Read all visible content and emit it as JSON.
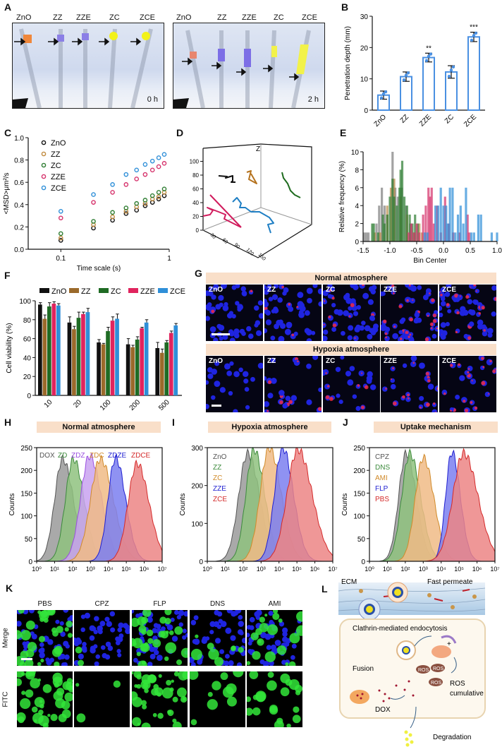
{
  "panels": {
    "A": {
      "letter": "A",
      "photo_0h": {
        "samples": [
          "ZnO",
          "ZZ",
          "ZZE",
          "ZC",
          "ZCE"
        ],
        "time": "0 h"
      },
      "photo_2h": {
        "samples": [
          "ZnO",
          "ZZ",
          "ZZE",
          "ZC",
          "ZCE"
        ],
        "time": "2 h"
      }
    },
    "B": {
      "letter": "B"
    },
    "C": {
      "letter": "C"
    },
    "D": {
      "letter": "D"
    },
    "E": {
      "letter": "E"
    },
    "F": {
      "letter": "F"
    },
    "G": {
      "letter": "G",
      "normal_title": "Normal atmosphere",
      "hypoxia_title": "Hypoxia atmosphere",
      "samples": [
        "ZnO",
        "ZZ",
        "ZC",
        "ZZE",
        "ZCE"
      ]
    },
    "H": {
      "letter": "H",
      "banner": "Normal atmosphere"
    },
    "I": {
      "letter": "I",
      "banner": "Hypoxia atmosphere"
    },
    "J": {
      "letter": "J",
      "banner": "Uptake mechanism"
    },
    "K": {
      "letter": "K",
      "columns": [
        "PBS",
        "CPZ",
        "FLP",
        "DNS",
        "AMI"
      ],
      "rows": [
        "Merge",
        "FITC"
      ]
    },
    "L": {
      "letter": "L",
      "labels": {
        "ecm": "ECM",
        "fast_permeate": "Fast permeate",
        "clathrin": "Clathrin-mediated endocytosis",
        "fusion": "Fusion",
        "dox": "DOX",
        "ros": "ROS",
        "ros_cumulative_1": "ROS",
        "ros_cumulative_2": "cumulative",
        "degradation": "Degradation",
        "plus": "+"
      }
    }
  },
  "chart_data": [
    {
      "id": "B",
      "type": "bar",
      "title": "",
      "xlabel": "",
      "ylabel": "Penetration depth (mm)",
      "categories": [
        "ZnO",
        "ZZ",
        "ZZE",
        "ZC",
        "ZCE"
      ],
      "values": [
        4.8,
        10.7,
        16.8,
        12.2,
        23.4
      ],
      "errors": [
        1.3,
        1.5,
        1.4,
        2.0,
        1.5
      ],
      "significance": [
        "",
        "",
        "**",
        "",
        "***"
      ],
      "ylim": [
        0,
        30
      ],
      "yticks": [
        0,
        10,
        20,
        30
      ],
      "color": "#4a90e2"
    },
    {
      "id": "C",
      "type": "scatter",
      "xscale": "log",
      "xlabel": "Time scale (s)",
      "ylabel": "<MSD>μm²/s",
      "ylim": [
        0.0,
        1.0
      ],
      "yticks": [
        0.0,
        0.2,
        0.4,
        0.6,
        0.8,
        1.0
      ],
      "xticks": [
        "0.1",
        "1"
      ],
      "x": [
        0.1,
        0.2,
        0.3,
        0.4,
        0.5,
        0.6,
        0.7,
        0.8,
        0.9
      ],
      "series": [
        {
          "name": "ZnO",
          "color": "#111111",
          "values": [
            0.08,
            0.19,
            0.26,
            0.32,
            0.35,
            0.39,
            0.42,
            0.45,
            0.48
          ]
        },
        {
          "name": "ZZ",
          "color": "#c08a3e",
          "values": [
            0.1,
            0.22,
            0.29,
            0.34,
            0.38,
            0.41,
            0.45,
            0.47,
            0.51
          ]
        },
        {
          "name": "ZC",
          "color": "#2e7d32",
          "values": [
            0.14,
            0.25,
            0.33,
            0.37,
            0.41,
            0.44,
            0.48,
            0.51,
            0.54
          ]
        },
        {
          "name": "ZZE",
          "color": "#d6336c",
          "values": [
            0.28,
            0.42,
            0.51,
            0.58,
            0.63,
            0.67,
            0.71,
            0.74,
            0.77
          ]
        },
        {
          "name": "ZCE",
          "color": "#2f8fd8",
          "values": [
            0.34,
            0.49,
            0.58,
            0.67,
            0.71,
            0.76,
            0.79,
            0.82,
            0.85
          ]
        }
      ]
    },
    {
      "id": "D",
      "type": "line",
      "title": "3D trajectories",
      "zlabel": "Z",
      "zticks": [
        0,
        20,
        40,
        60,
        80,
        100
      ],
      "xticks": [
        30,
        60,
        90,
        120,
        150
      ],
      "series": [
        {
          "name": "ZnO",
          "color": "#111111"
        },
        {
          "name": "ZZ",
          "color": "#b5731f"
        },
        {
          "name": "ZC",
          "color": "#1e6b1e"
        },
        {
          "name": "ZZE",
          "color": "#d11c5d"
        },
        {
          "name": "ZCE",
          "color": "#1f7fc4"
        }
      ]
    },
    {
      "id": "E",
      "type": "bar",
      "subtype": "histogram",
      "xlabel": "Bin Center",
      "ylabel": "Relative frequency (%)",
      "xlim": [
        -1.5,
        1.0
      ],
      "ylim": [
        0,
        10
      ],
      "xticks": [
        -1.5,
        -1.0,
        -0.5,
        0.0,
        0.5,
        1.0
      ],
      "yticks": [
        0,
        2,
        4,
        6,
        8,
        10
      ],
      "series": [
        {
          "name": "ZnO",
          "color": "#7f7f7f",
          "bins": [
            [
              -1.48,
              1
            ],
            [
              -1.44,
              1
            ],
            [
              -1.4,
              1
            ],
            [
              -1.25,
              2
            ],
            [
              -1.2,
              4
            ],
            [
              -1.15,
              6
            ],
            [
              -1.1,
              4
            ],
            [
              -1.05,
              3
            ],
            [
              -0.95,
              10
            ],
            [
              -0.9,
              6
            ],
            [
              -0.85,
              5
            ],
            [
              -0.78,
              6
            ],
            [
              -0.7,
              4
            ],
            [
              -0.62,
              2
            ]
          ]
        },
        {
          "name": "ZZ",
          "color": "#b98b4a",
          "bins": [
            [
              -1.28,
              1
            ],
            [
              -1.18,
              1
            ],
            [
              -1.05,
              4
            ],
            [
              -0.98,
              6
            ],
            [
              -0.92,
              7
            ],
            [
              -0.8,
              5
            ],
            [
              -0.68,
              3
            ],
            [
              -0.55,
              1
            ],
            [
              -0.45,
              2
            ],
            [
              -0.4,
              1
            ]
          ]
        },
        {
          "name": "ZC",
          "color": "#2e7d32",
          "bins": [
            [
              -1.33,
              2
            ],
            [
              -1.3,
              2
            ],
            [
              -1.22,
              1
            ],
            [
              -1.13,
              3
            ],
            [
              -1.1,
              2
            ],
            [
              -1.05,
              3
            ],
            [
              -1.0,
              5
            ],
            [
              -0.95,
              7
            ],
            [
              -0.92,
              5
            ],
            [
              -0.87,
              4
            ],
            [
              -0.82,
              6
            ],
            [
              -0.8,
              8
            ],
            [
              -0.77,
              9
            ],
            [
              -0.73,
              5
            ],
            [
              -0.68,
              4
            ],
            [
              -0.63,
              3
            ],
            [
              -0.58,
              2
            ],
            [
              -0.53,
              3
            ],
            [
              -0.48,
              2
            ]
          ]
        },
        {
          "name": "ZZE",
          "color": "#d6336c",
          "bins": [
            [
              -0.65,
              1
            ],
            [
              -0.6,
              2
            ],
            [
              -0.55,
              1
            ],
            [
              -0.5,
              2
            ],
            [
              -0.45,
              1
            ],
            [
              -0.38,
              3
            ],
            [
              -0.33,
              4
            ],
            [
              -0.28,
              6
            ],
            [
              -0.25,
              5
            ],
            [
              -0.22,
              6
            ],
            [
              -0.18,
              2
            ],
            [
              -0.12,
              4
            ],
            [
              -0.05,
              1
            ],
            [
              0.03,
              5
            ],
            [
              0.1,
              2
            ],
            [
              0.18,
              1
            ],
            [
              0.3,
              1
            ],
            [
              0.45,
              3
            ],
            [
              0.48,
              1
            ]
          ]
        },
        {
          "name": "ZCE",
          "color": "#2f8fd8",
          "bins": [
            [
              -0.35,
              1
            ],
            [
              -0.3,
              1
            ],
            [
              -0.15,
              4
            ],
            [
              -0.1,
              4
            ],
            [
              -0.05,
              6
            ],
            [
              0.0,
              4
            ],
            [
              0.05,
              4
            ],
            [
              0.08,
              2
            ],
            [
              0.12,
              6
            ],
            [
              0.17,
              6
            ],
            [
              0.22,
              1
            ],
            [
              0.27,
              3
            ],
            [
              0.32,
              4
            ],
            [
              0.37,
              2
            ],
            [
              0.42,
              6
            ],
            [
              0.52,
              1
            ],
            [
              0.57,
              1
            ],
            [
              0.65,
              3
            ],
            [
              0.7,
              3
            ],
            [
              0.9,
              1
            ],
            [
              1.0,
              1
            ]
          ]
        }
      ]
    },
    {
      "id": "F",
      "type": "bar",
      "subtype": "grouped",
      "xlabel": "",
      "ylabel": "Cell viability (%)",
      "categories": [
        "10",
        "20",
        "100",
        "200",
        "500"
      ],
      "ylim": [
        0,
        100
      ],
      "yticks": [
        0,
        20,
        40,
        60,
        80,
        100
      ],
      "legend": "top",
      "series": [
        {
          "name": "ZnO",
          "color": "#111111",
          "values": [
            96,
            77,
            56,
            54,
            50
          ],
          "errors": [
            2,
            6,
            3,
            6,
            6
          ]
        },
        {
          "name": "ZZ",
          "color": "#9b6a2b",
          "values": [
            81,
            70,
            54,
            51,
            45
          ],
          "errors": [
            4,
            3,
            1,
            2,
            4
          ]
        },
        {
          "name": "ZC",
          "color": "#1f6b24",
          "values": [
            94,
            82,
            68,
            59,
            56
          ],
          "errors": [
            4,
            6,
            4,
            3,
            2
          ]
        },
        {
          "name": "ZZE",
          "color": "#e0245e",
          "values": [
            97,
            86,
            79,
            71,
            66
          ],
          "errors": [
            2,
            2,
            4,
            1,
            2
          ]
        },
        {
          "name": "ZCE",
          "color": "#2f8fd8",
          "values": [
            95,
            88,
            81,
            77,
            74
          ],
          "errors": [
            2,
            4,
            5,
            3,
            2
          ]
        }
      ]
    },
    {
      "id": "H",
      "type": "area",
      "title": "Normal atmosphere",
      "xscale": "log",
      "xlabel": "",
      "ylabel": "Counts",
      "ylim": [
        0,
        250
      ],
      "yticks": [
        0,
        50,
        100,
        150,
        200,
        250
      ],
      "xticks": [
        "10⁰",
        "10¹",
        "10²",
        "10³",
        "10⁴",
        "10⁵",
        "10⁶",
        "10⁷"
      ],
      "series": [
        {
          "name": "DOX",
          "color": "#555555",
          "fill": "#9a9a9a",
          "peak_log": 1.45,
          "peak": 225,
          "width": 0.45
        },
        {
          "name": "ZD",
          "color": "#3c8a3c",
          "fill": "#8fc27f",
          "peak_log": 2.05,
          "peak": 225,
          "width": 0.45
        },
        {
          "name": "ZDZ",
          "color": "#9a4ee0",
          "fill": "#c9a2f0",
          "peak_log": 2.95,
          "peak": 232,
          "width": 0.5
        },
        {
          "name": "ZDC",
          "color": "#d08a2a",
          "fill": "#f0bb86",
          "peak_log": 3.55,
          "peak": 225,
          "width": 0.55
        },
        {
          "name": "ZDZE",
          "color": "#1f1fd0",
          "fill": "#7b7ff0",
          "peak_log": 4.4,
          "peak": 227,
          "width": 0.42
        },
        {
          "name": "ZDCE",
          "color": "#d42a2a",
          "fill": "#ec8585",
          "peak_log": 5.6,
          "peak": 215,
          "width": 0.5
        }
      ]
    },
    {
      "id": "I",
      "type": "area",
      "title": "Hypoxia atmosphere",
      "xscale": "log",
      "ylabel": "Counts",
      "ylim": [
        0,
        300
      ],
      "yticks": [
        0,
        100,
        200,
        300
      ],
      "xticks": [
        "10⁰",
        "10¹",
        "10²",
        "10³",
        "10⁴",
        "10⁵",
        "10⁶",
        "10⁷"
      ],
      "series": [
        {
          "name": "ZnO",
          "color": "#555555",
          "fill": "#9a9a9a",
          "peak_log": 2.25,
          "peak": 285,
          "width": 0.5
        },
        {
          "name": "ZZ",
          "color": "#3c8a3c",
          "fill": "#8fc27f",
          "peak_log": 2.6,
          "peak": 295,
          "width": 0.45
        },
        {
          "name": "ZC",
          "color": "#d08a2a",
          "fill": "#f0bb86",
          "peak_log": 3.45,
          "peak": 300,
          "width": 0.5
        },
        {
          "name": "ZZE",
          "color": "#1f1fd0",
          "fill": "#7b7ff0",
          "peak_log": 4.2,
          "peak": 300,
          "width": 0.45
        },
        {
          "name": "ZCE",
          "color": "#d42a2a",
          "fill": "#ec8585",
          "peak_log": 5.05,
          "peak": 295,
          "width": 0.6
        }
      ]
    },
    {
      "id": "J",
      "type": "area",
      "title": "Uptake mechanism",
      "xscale": "log",
      "ylabel": "Counts",
      "ylim": [
        0,
        250
      ],
      "yticks": [
        0,
        50,
        100,
        150,
        200,
        250
      ],
      "xticks": [
        "10⁰",
        "10¹",
        "10²",
        "10³",
        "10⁴",
        "10⁵",
        "10⁶",
        "10⁷"
      ],
      "series": [
        {
          "name": "CPZ",
          "color": "#555555",
          "fill": "#9a9a9a",
          "peak_log": 2.05,
          "peak": 238,
          "width": 0.42
        },
        {
          "name": "DNS",
          "color": "#3c8a3c",
          "fill": "#8fc27f",
          "peak_log": 2.25,
          "peak": 237,
          "width": 0.45
        },
        {
          "name": "AMI",
          "color": "#d08a2a",
          "fill": "#f0bb86",
          "peak_log": 3.0,
          "peak": 228,
          "width": 0.45
        },
        {
          "name": "FLP",
          "color": "#1f1fd0",
          "fill": "#7b7ff0",
          "peak_log": 4.6,
          "peak": 240,
          "width": 0.35
        },
        {
          "name": "PBS",
          "color": "#d42a2a",
          "fill": "#ec8585",
          "peak_log": 5.25,
          "peak": 238,
          "width": 0.6
        }
      ]
    }
  ]
}
